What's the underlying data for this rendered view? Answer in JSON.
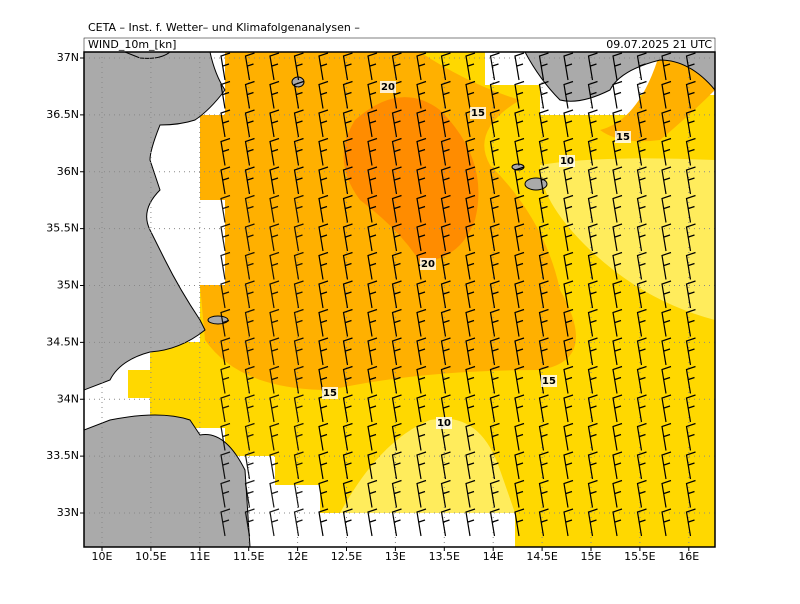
{
  "header": {
    "source": "CETA – Inst. f. Wetter– und Klimafolgenanalysen –",
    "field": "WIND_10m_[kn]",
    "valid": "09.07.2025  21 UTC"
  },
  "map": {
    "lon_ticks": [
      {
        "value": 10,
        "label": "10E"
      },
      {
        "value": 10.5,
        "label": "10.5E"
      },
      {
        "value": 11,
        "label": "11E"
      },
      {
        "value": 11.5,
        "label": "11.5E"
      },
      {
        "value": 12,
        "label": "12E"
      },
      {
        "value": 12.5,
        "label": "12.5E"
      },
      {
        "value": 13,
        "label": "13E"
      },
      {
        "value": 13.5,
        "label": "13.5E"
      },
      {
        "value": 14,
        "label": "14E"
      },
      {
        "value": 14.5,
        "label": "14.5E"
      },
      {
        "value": 15,
        "label": "15E"
      },
      {
        "value": 15.5,
        "label": "15.5E"
      },
      {
        "value": 16,
        "label": "16E"
      }
    ],
    "lat_ticks": [
      {
        "value": 37,
        "label": "37N"
      },
      {
        "value": 36.5,
        "label": "36.5N"
      },
      {
        "value": 36,
        "label": "36N"
      },
      {
        "value": 35.5,
        "label": "35.5N"
      },
      {
        "value": 35,
        "label": "35N"
      },
      {
        "value": 34.5,
        "label": "34.5N"
      },
      {
        "value": 34,
        "label": "34N"
      },
      {
        "value": 33.5,
        "label": "33.5N"
      },
      {
        "value": 33,
        "label": "33N"
      }
    ],
    "contour_labels": [
      "20",
      "15",
      "10",
      "15",
      "20",
      "15",
      "15",
      "10"
    ]
  }
}
